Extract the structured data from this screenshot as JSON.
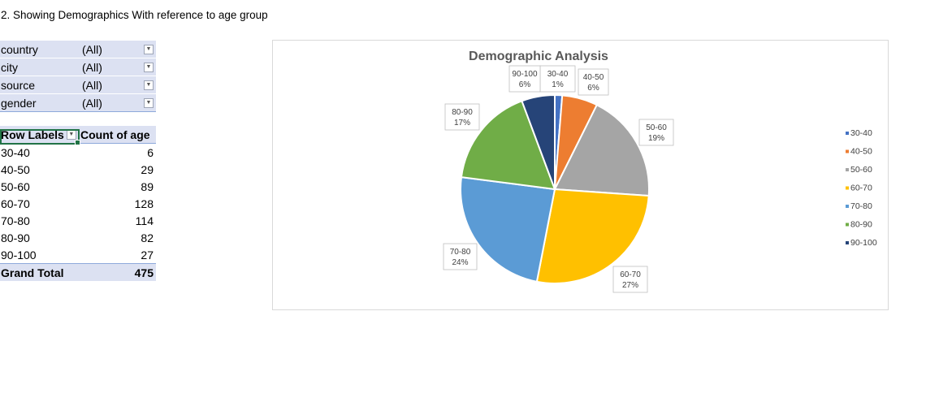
{
  "heading": "2. Showing Demographics With reference to age group",
  "filters": [
    {
      "name": "country",
      "value": "(All)"
    },
    {
      "name": "city",
      "value": "(All)"
    },
    {
      "name": "source",
      "value": "(All)"
    },
    {
      "name": "gender",
      "value": "(All)"
    }
  ],
  "pivot": {
    "header_labels": "Row Labels",
    "header_count": "Count of age",
    "rows": [
      {
        "label": "30-40",
        "value": "6"
      },
      {
        "label": "40-50",
        "value": "29"
      },
      {
        "label": "50-60",
        "value": "89"
      },
      {
        "label": "60-70",
        "value": "128"
      },
      {
        "label": "70-80",
        "value": "114"
      },
      {
        "label": "80-90",
        "value": "82"
      },
      {
        "label": "90-100",
        "value": "27"
      }
    ],
    "total_label": "Grand Total",
    "total_value": "475"
  },
  "chart_data": {
    "type": "pie",
    "title": "Demographic Analysis",
    "categories": [
      "30-40",
      "40-50",
      "50-60",
      "60-70",
      "70-80",
      "80-90",
      "90-100"
    ],
    "values": [
      6,
      29,
      89,
      128,
      114,
      82,
      27
    ],
    "percent_labels": [
      "1%",
      "6%",
      "19%",
      "27%",
      "24%",
      "17%",
      "6%"
    ],
    "colors": [
      "#4472c4",
      "#ed7d31",
      "#a5a5a5",
      "#ffc000",
      "#5b9bd5",
      "#70ad47",
      "#264478"
    ],
    "legend_position": "right"
  }
}
